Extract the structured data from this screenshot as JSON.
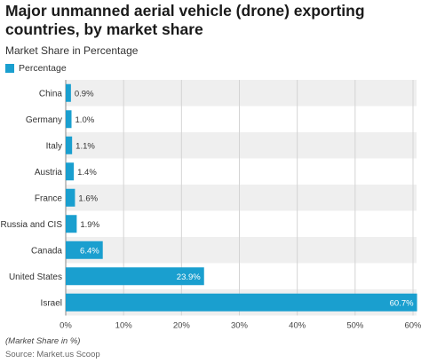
{
  "header": {
    "title": "Major unmanned aerial vehicle (drone) exporting countries, by market share",
    "subtitle": "Market Share in Percentage"
  },
  "footer": {
    "note": "(Market Share in %)",
    "source": "Source: Market.us Scoop"
  },
  "colors": {
    "bar": "#1a9fcf",
    "band": "#efefef",
    "grid": "#d4d4d4"
  },
  "chart_data": {
    "type": "bar",
    "orientation": "horizontal",
    "categories": [
      "China",
      "Germany",
      "Italy",
      "Austria",
      "France",
      "Russia and CIS",
      "Canada",
      "United States",
      "Israel"
    ],
    "series": [
      {
        "name": "Percentage",
        "values": [
          0.9,
          1.0,
          1.1,
          1.4,
          1.6,
          1.9,
          6.4,
          23.9,
          60.7
        ],
        "labels": [
          "0.9%",
          "1.0%",
          "1.1%",
          "1.4%",
          "1.6%",
          "1.9%",
          "6.4%",
          "23.9%",
          "60.7%"
        ]
      }
    ],
    "xlim": [
      0,
      60
    ],
    "xticks": [
      "0%",
      "10%",
      "20%",
      "30%",
      "40%",
      "50%",
      "60%"
    ],
    "legend": "top-left",
    "grid": true
  }
}
